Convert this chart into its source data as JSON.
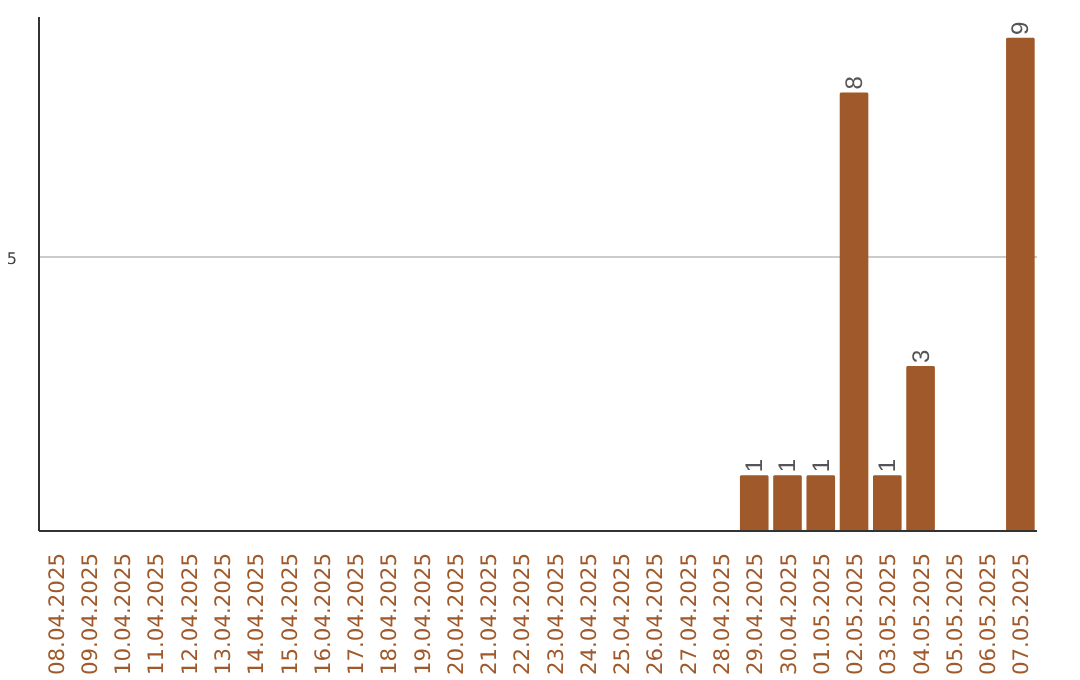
{
  "chart_data": {
    "type": "bar",
    "categories": [
      "08.04.2025",
      "09.04.2025",
      "10.04.2025",
      "11.04.2025",
      "12.04.2025",
      "13.04.2025",
      "14.04.2025",
      "15.04.2025",
      "16.04.2025",
      "17.04.2025",
      "18.04.2025",
      "19.04.2025",
      "20.04.2025",
      "21.04.2025",
      "22.04.2025",
      "23.04.2025",
      "24.04.2025",
      "25.04.2025",
      "26.04.2025",
      "27.04.2025",
      "28.04.2025",
      "29.04.2025",
      "30.04.2025",
      "01.05.2025",
      "02.05.2025",
      "03.05.2025",
      "04.05.2025",
      "05.05.2025",
      "06.05.2025",
      "07.05.2025"
    ],
    "values": [
      null,
      null,
      null,
      null,
      null,
      null,
      null,
      null,
      null,
      null,
      null,
      null,
      null,
      null,
      null,
      null,
      null,
      null,
      null,
      null,
      null,
      1,
      1,
      1,
      8,
      1,
      3,
      null,
      null,
      9
    ],
    "color": "#a0592a",
    "ylim": [
      0,
      9.4
    ],
    "yticks": [
      5
    ],
    "grid": "y",
    "data_labels": true
  }
}
